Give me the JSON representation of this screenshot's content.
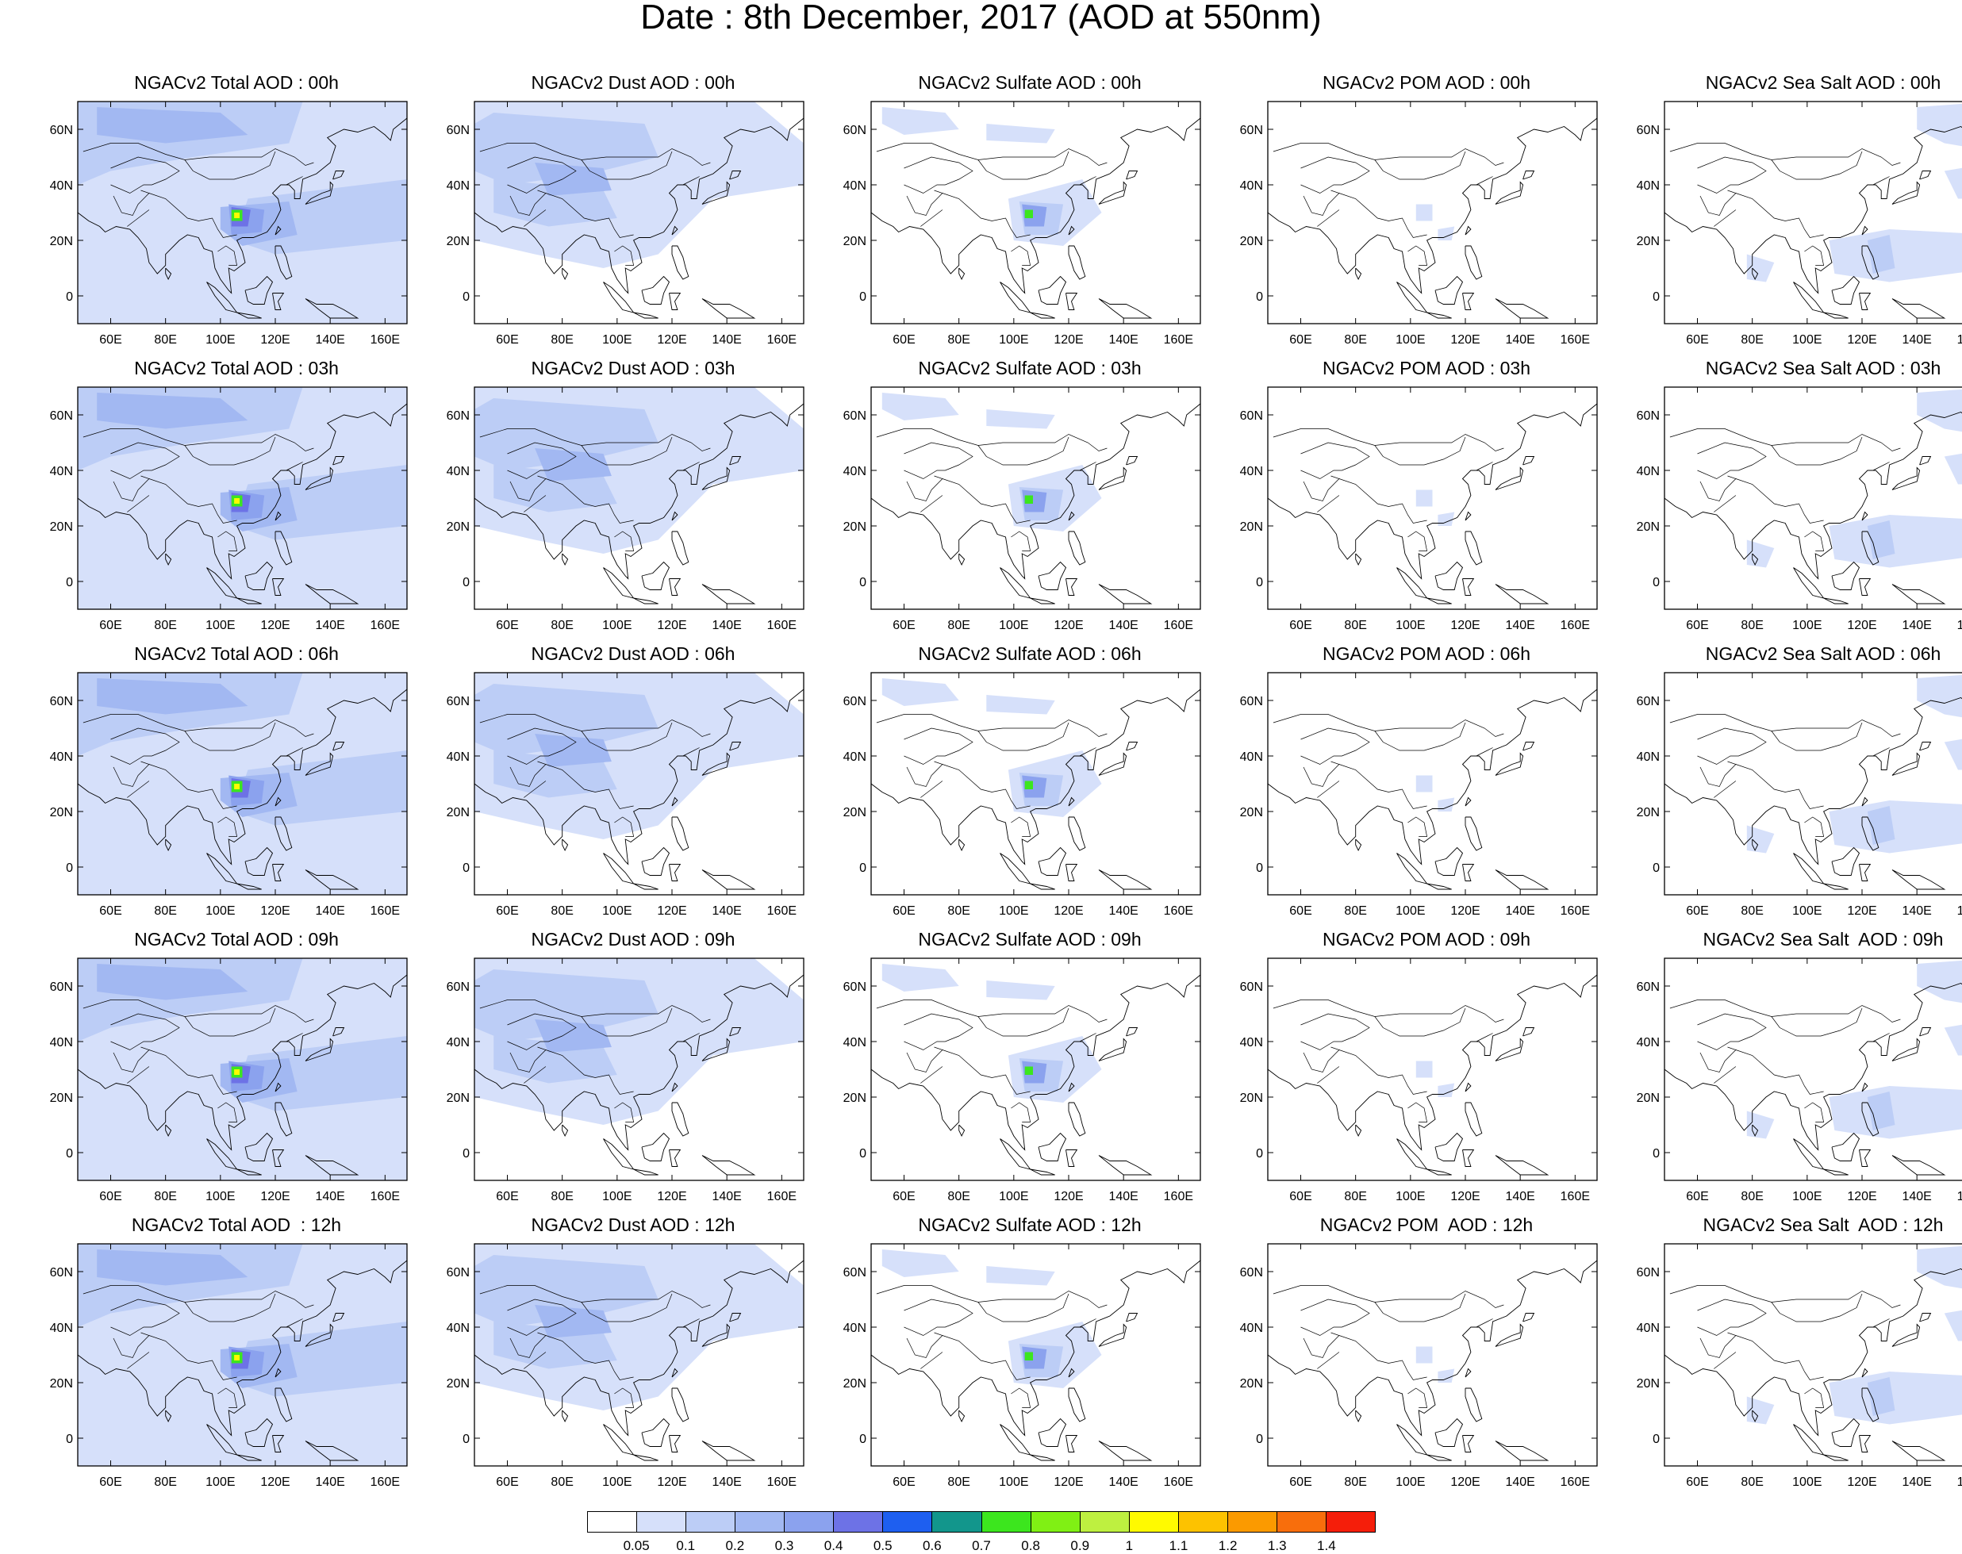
{
  "title": "Date : 8th December, 2017 (AOD at 550nm)",
  "axes": {
    "x_ticks": [
      "60E",
      "80E",
      "100E",
      "120E",
      "140E",
      "160E"
    ],
    "x_values": [
      60,
      80,
      100,
      120,
      140,
      160
    ],
    "y_ticks": [
      "60N",
      "40N",
      "20N",
      "0"
    ],
    "y_values": [
      60,
      40,
      20,
      0
    ],
    "lon_range": [
      48,
      168
    ],
    "lat_range": [
      -10,
      70
    ]
  },
  "panels": [
    {
      "title": "NGACv2 Total AOD : 00h",
      "variable": "total",
      "hour": "00h"
    },
    {
      "title": "NGACv2 Dust AOD : 00h",
      "variable": "dust",
      "hour": "00h"
    },
    {
      "title": "NGACv2 Sulfate AOD : 00h",
      "variable": "sulfate",
      "hour": "00h"
    },
    {
      "title": "NGACv2 POM AOD : 00h",
      "variable": "pom",
      "hour": "00h"
    },
    {
      "title": "NGACv2 Sea Salt AOD : 00h",
      "variable": "seasalt",
      "hour": "00h"
    },
    {
      "title": "NGACv2 Total AOD : 03h",
      "variable": "total",
      "hour": "03h"
    },
    {
      "title": "NGACv2 Dust AOD : 03h",
      "variable": "dust",
      "hour": "03h"
    },
    {
      "title": "NGACv2 Sulfate AOD : 03h",
      "variable": "sulfate",
      "hour": "03h"
    },
    {
      "title": "NGACv2 POM AOD : 03h",
      "variable": "pom",
      "hour": "03h"
    },
    {
      "title": "NGACv2 Sea Salt AOD : 03h",
      "variable": "seasalt",
      "hour": "03h"
    },
    {
      "title": "NGACv2 Total AOD : 06h",
      "variable": "total",
      "hour": "06h"
    },
    {
      "title": "NGACv2 Dust AOD : 06h",
      "variable": "dust",
      "hour": "06h"
    },
    {
      "title": "NGACv2 Sulfate AOD : 06h",
      "variable": "sulfate",
      "hour": "06h"
    },
    {
      "title": "NGACv2 POM AOD : 06h",
      "variable": "pom",
      "hour": "06h"
    },
    {
      "title": "NGACv2 Sea Salt AOD : 06h",
      "variable": "seasalt",
      "hour": "06h"
    },
    {
      "title": "NGACv2 Total AOD : 09h",
      "variable": "total",
      "hour": "09h"
    },
    {
      "title": "NGACv2 Dust AOD : 09h",
      "variable": "dust",
      "hour": "09h"
    },
    {
      "title": "NGACv2 Sulfate AOD : 09h",
      "variable": "sulfate",
      "hour": "09h"
    },
    {
      "title": "NGACv2 POM AOD : 09h",
      "variable": "pom",
      "hour": "09h"
    },
    {
      "title": "NGACv2 Sea Salt  AOD : 09h",
      "variable": "seasalt",
      "hour": "09h"
    },
    {
      "title": "NGACv2 Total AOD  : 12h",
      "variable": "total",
      "hour": "12h"
    },
    {
      "title": "NGACv2 Dust AOD : 12h",
      "variable": "dust",
      "hour": "12h"
    },
    {
      "title": "NGACv2 Sulfate AOD : 12h",
      "variable": "sulfate",
      "hour": "12h"
    },
    {
      "title": "NGACv2 POM  AOD : 12h",
      "variable": "pom",
      "hour": "12h"
    },
    {
      "title": "NGACv2 Sea Salt  AOD : 12h",
      "variable": "seasalt",
      "hour": "12h"
    }
  ],
  "colorbar": {
    "labels": [
      "0.05",
      "0.1",
      "0.2",
      "0.3",
      "0.4",
      "0.5",
      "0.6",
      "0.7",
      "0.8",
      "0.9",
      "1",
      "1.1",
      "1.2",
      "1.3",
      "1.4"
    ],
    "colors": [
      "#ffffff",
      "#d6e0fa",
      "#bccdf6",
      "#a2b8f2",
      "#8ba2ee",
      "#6d72e6",
      "#1e5ff0",
      "#12968c",
      "#3ce61e",
      "#80f014",
      "#bef040",
      "#fffa00",
      "#fdc200",
      "#fb9a00",
      "#f86e0c",
      "#f51e0a"
    ]
  },
  "colors": {
    "level_1": "#d6e0fa",
    "level_2": "#bccdf6",
    "level_3": "#a2b8f2",
    "level_4": "#8ba2ee",
    "level_5": "#6d72e6",
    "peak_green": "#3ce61e",
    "peak_yellow": "#fffa00",
    "coastline": "#000000"
  }
}
